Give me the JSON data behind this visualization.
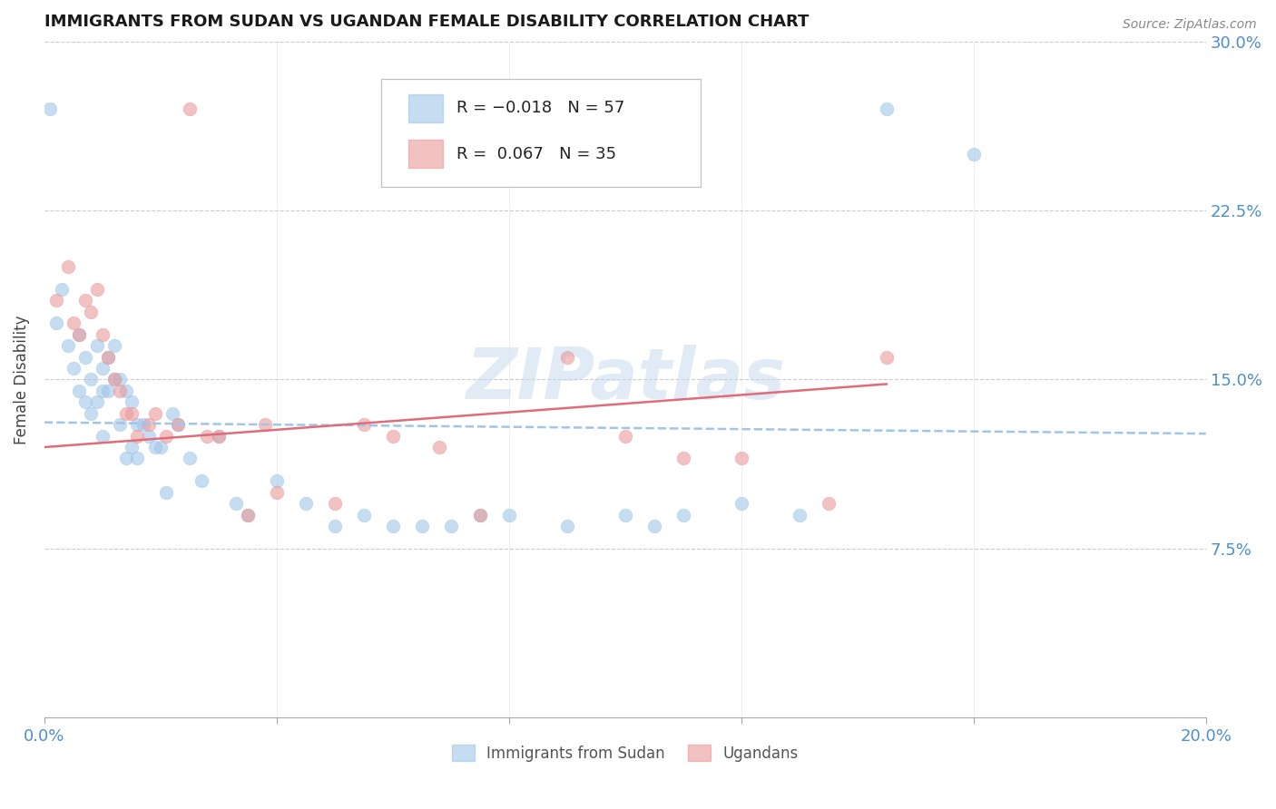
{
  "title": "IMMIGRANTS FROM SUDAN VS UGANDAN FEMALE DISABILITY CORRELATION CHART",
  "source": "Source: ZipAtlas.com",
  "ylabel": "Female Disability",
  "xlim": [
    0.0,
    0.2
  ],
  "ylim": [
    0.0,
    0.3
  ],
  "xtick_positions": [
    0.0,
    0.04,
    0.08,
    0.12,
    0.16,
    0.2
  ],
  "xtick_labels": [
    "0.0%",
    "",
    "",
    "",
    "",
    "20.0%"
  ],
  "ytick_positions": [
    0.0,
    0.075,
    0.15,
    0.225,
    0.3
  ],
  "right_ytick_labels": [
    "",
    "7.5%",
    "15.0%",
    "22.5%",
    "30.0%"
  ],
  "background_color": "#ffffff",
  "grid_color": "#cccccc",
  "axis_color": "#4d8fcc",
  "blue_color": "#9fc5e8",
  "pink_color": "#ea9999",
  "blue_line_color": "#9fc5e8",
  "pink_line_color": "#e06c7a",
  "legend_label1": "Immigrants from Sudan",
  "legend_label2": "Ugandans",
  "watermark": "ZIPatlas",
  "sudan_trend_x": [
    0.0,
    0.2
  ],
  "sudan_trend_y": [
    0.131,
    0.126
  ],
  "ugandan_trend_x": [
    0.0,
    0.145
  ],
  "ugandan_trend_y": [
    0.12,
    0.148
  ],
  "sudan_x": [
    0.001,
    0.002,
    0.003,
    0.004,
    0.005,
    0.006,
    0.006,
    0.007,
    0.007,
    0.008,
    0.008,
    0.009,
    0.009,
    0.01,
    0.01,
    0.01,
    0.011,
    0.011,
    0.012,
    0.012,
    0.013,
    0.013,
    0.014,
    0.014,
    0.015,
    0.015,
    0.016,
    0.016,
    0.017,
    0.018,
    0.019,
    0.02,
    0.021,
    0.022,
    0.023,
    0.025,
    0.027,
    0.03,
    0.033,
    0.035,
    0.04,
    0.045,
    0.05,
    0.055,
    0.06,
    0.065,
    0.07,
    0.075,
    0.08,
    0.09,
    0.1,
    0.105,
    0.11,
    0.12,
    0.13,
    0.145,
    0.16
  ],
  "sudan_y": [
    0.27,
    0.175,
    0.19,
    0.165,
    0.155,
    0.17,
    0.145,
    0.16,
    0.14,
    0.15,
    0.135,
    0.165,
    0.14,
    0.155,
    0.145,
    0.125,
    0.16,
    0.145,
    0.165,
    0.15,
    0.15,
    0.13,
    0.145,
    0.115,
    0.14,
    0.12,
    0.13,
    0.115,
    0.13,
    0.125,
    0.12,
    0.12,
    0.1,
    0.135,
    0.13,
    0.115,
    0.105,
    0.125,
    0.095,
    0.09,
    0.105,
    0.095,
    0.085,
    0.09,
    0.085,
    0.085,
    0.085,
    0.09,
    0.09,
    0.085,
    0.09,
    0.085,
    0.09,
    0.095,
    0.09,
    0.27,
    0.25
  ],
  "ugandan_x": [
    0.002,
    0.004,
    0.005,
    0.006,
    0.007,
    0.008,
    0.009,
    0.01,
    0.011,
    0.012,
    0.013,
    0.014,
    0.015,
    0.016,
    0.018,
    0.019,
    0.021,
    0.023,
    0.025,
    0.028,
    0.03,
    0.035,
    0.038,
    0.04,
    0.05,
    0.055,
    0.06,
    0.068,
    0.075,
    0.09,
    0.1,
    0.11,
    0.12,
    0.135,
    0.145
  ],
  "ugandan_y": [
    0.185,
    0.2,
    0.175,
    0.17,
    0.185,
    0.18,
    0.19,
    0.17,
    0.16,
    0.15,
    0.145,
    0.135,
    0.135,
    0.125,
    0.13,
    0.135,
    0.125,
    0.13,
    0.27,
    0.125,
    0.125,
    0.09,
    0.13,
    0.1,
    0.095,
    0.13,
    0.125,
    0.12,
    0.09,
    0.16,
    0.125,
    0.115,
    0.115,
    0.095,
    0.16
  ]
}
